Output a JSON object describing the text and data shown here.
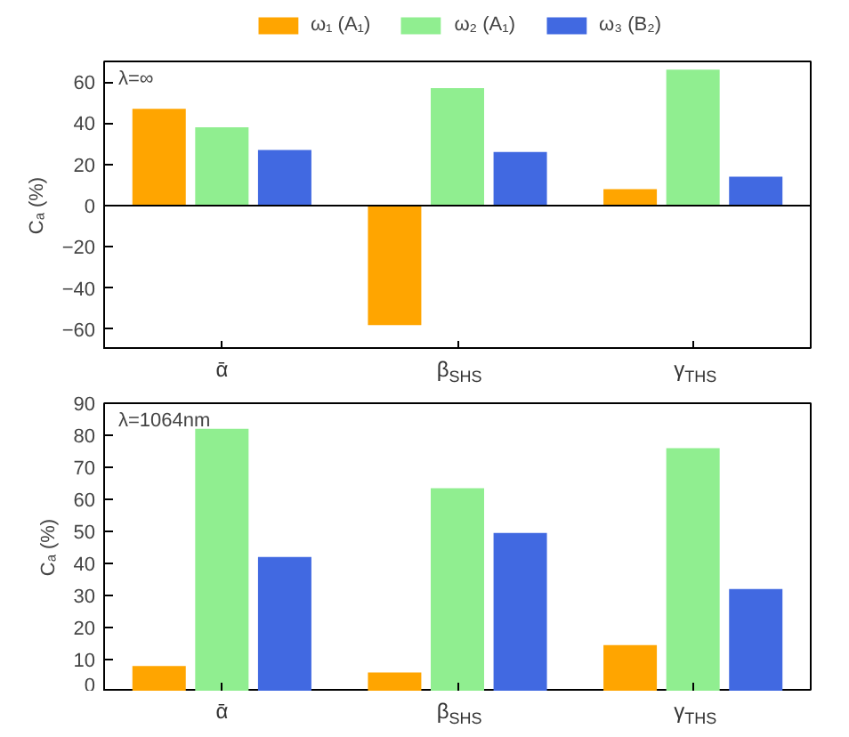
{
  "chart_data": [
    {
      "type": "bar",
      "categories": [
        "ᾱ",
        "β$_{SHS}$",
        "γ$_{THS}$"
      ],
      "ylabel": "Cₐ (%)",
      "ylim": [
        -70,
        70
      ],
      "yticks": [
        -60,
        -40,
        -20,
        0,
        20,
        40,
        60
      ],
      "grid": false,
      "legend": "top",
      "annotations": [
        "λ=∞"
      ],
      "series": [
        {
          "name": "ω₁ (A₁)",
          "color": "#ffa500",
          "values": [
            47,
            -58,
            8
          ]
        },
        {
          "name": "ω₂ (A₁)",
          "color": "#90ee90",
          "values": [
            38,
            57,
            66
          ]
        },
        {
          "name": "ω₃ (B₂)",
          "color": "#4169e1",
          "values": [
            27,
            26,
            14
          ]
        }
      ],
      "ref_lines": [
        {
          "axis": "y",
          "value": 0,
          "color": "#000000"
        }
      ]
    },
    {
      "type": "bar",
      "categories": [
        "ᾱ",
        "β$_{SHS}$",
        "γ$_{THS}$"
      ],
      "ylabel": "Cₐ (%)",
      "ylim": [
        0,
        90
      ],
      "yticks": [
        0,
        10,
        20,
        30,
        40,
        50,
        60,
        70,
        80,
        90
      ],
      "grid": false,
      "annotations": [
        "λ=1064nm"
      ],
      "series": [
        {
          "color": "#ffa500",
          "values": [
            8,
            6,
            14.5
          ]
        },
        {
          "color": "#90ee90",
          "values": [
            82,
            63.5,
            76
          ]
        },
        {
          "color": "#4169e1",
          "values": [
            42,
            49.5,
            32
          ]
        }
      ]
    }
  ]
}
